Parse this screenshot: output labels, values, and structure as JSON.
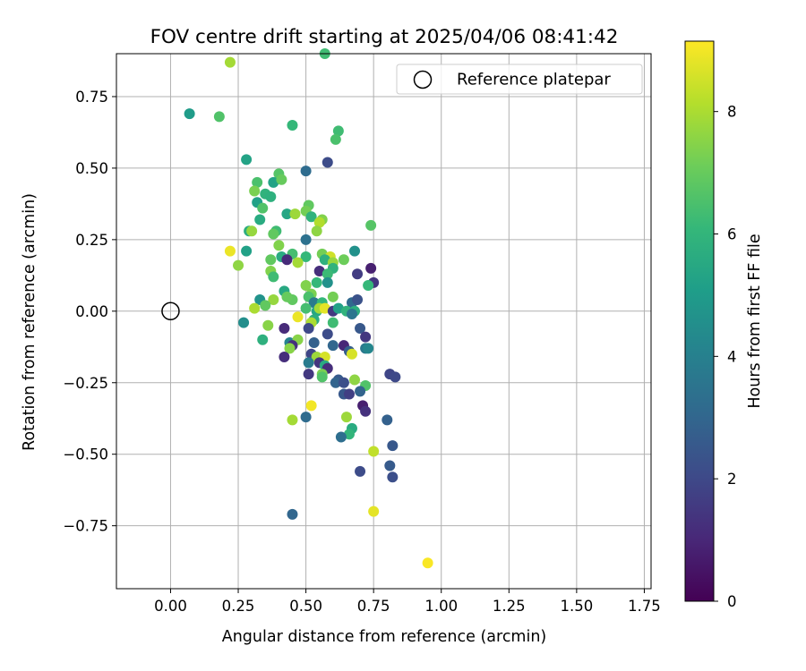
{
  "chart_data": {
    "type": "scatter",
    "title": "FOV centre drift starting at 2025/04/06 08:41:42",
    "xlabel": "Angular distance from reference (arcmin)",
    "ylabel": "Rotation from reference (arcmin)",
    "xlim": [
      -0.2,
      1.775
    ],
    "ylim": [
      -0.97,
      0.9
    ],
    "x_ticks": [
      0.0,
      0.25,
      0.5,
      0.75,
      1.0,
      1.25,
      1.5,
      1.75
    ],
    "x_tick_labels": [
      "0.00",
      "0.25",
      "0.50",
      "0.75",
      "1.00",
      "1.25",
      "1.50",
      "1.75"
    ],
    "y_ticks": [
      -0.75,
      -0.5,
      -0.25,
      0.0,
      0.25,
      0.5,
      0.75
    ],
    "y_tick_labels": [
      "−0.75",
      "−0.50",
      "−0.25",
      "0.00",
      "0.25",
      "0.50",
      "0.75"
    ],
    "grid": true,
    "legend": {
      "placement": "top-right",
      "entries": [
        "Reference platepar"
      ]
    },
    "reference_point": {
      "x": 0.0,
      "y": 0.0
    },
    "colorbar": {
      "label": "Hours from first FF file",
      "range": [
        0,
        9.15
      ],
      "ticks": [
        0,
        2,
        4,
        6,
        8
      ],
      "tick_labels": [
        "0",
        "2",
        "4",
        "6",
        "8"
      ],
      "colormap": "viridis"
    },
    "points": [
      {
        "x": 0.22,
        "y": 0.87,
        "h": 7.9
      },
      {
        "x": 0.57,
        "y": 0.9,
        "h": 6.3
      },
      {
        "x": 0.07,
        "y": 0.69,
        "h": 5.0
      },
      {
        "x": 0.18,
        "y": 0.68,
        "h": 6.6
      },
      {
        "x": 0.45,
        "y": 0.65,
        "h": 6.1
      },
      {
        "x": 0.62,
        "y": 0.63,
        "h": 6.3
      },
      {
        "x": 0.61,
        "y": 0.6,
        "h": 6.5
      },
      {
        "x": 0.28,
        "y": 0.53,
        "h": 5.3
      },
      {
        "x": 0.58,
        "y": 0.52,
        "h": 2.1
      },
      {
        "x": 0.5,
        "y": 0.49,
        "h": 3.2
      },
      {
        "x": 0.4,
        "y": 0.48,
        "h": 6.7
      },
      {
        "x": 0.32,
        "y": 0.45,
        "h": 6.5
      },
      {
        "x": 0.38,
        "y": 0.45,
        "h": 5.3
      },
      {
        "x": 0.41,
        "y": 0.46,
        "h": 7.0
      },
      {
        "x": 0.31,
        "y": 0.42,
        "h": 7.3
      },
      {
        "x": 0.35,
        "y": 0.41,
        "h": 5.9
      },
      {
        "x": 0.32,
        "y": 0.38,
        "h": 5.2
      },
      {
        "x": 0.37,
        "y": 0.4,
        "h": 5.8
      },
      {
        "x": 0.34,
        "y": 0.36,
        "h": 6.6
      },
      {
        "x": 0.51,
        "y": 0.37,
        "h": 6.9
      },
      {
        "x": 0.5,
        "y": 0.35,
        "h": 7.2
      },
      {
        "x": 0.43,
        "y": 0.34,
        "h": 5.4
      },
      {
        "x": 0.46,
        "y": 0.34,
        "h": 7.8
      },
      {
        "x": 0.33,
        "y": 0.32,
        "h": 5.6
      },
      {
        "x": 0.52,
        "y": 0.33,
        "h": 5.9
      },
      {
        "x": 0.56,
        "y": 0.32,
        "h": 7.4
      },
      {
        "x": 0.55,
        "y": 0.31,
        "h": 8.1
      },
      {
        "x": 0.74,
        "y": 0.3,
        "h": 6.7
      },
      {
        "x": 0.29,
        "y": 0.28,
        "h": 5.7
      },
      {
        "x": 0.3,
        "y": 0.28,
        "h": 7.7
      },
      {
        "x": 0.39,
        "y": 0.28,
        "h": 6.3
      },
      {
        "x": 0.38,
        "y": 0.27,
        "h": 6.9
      },
      {
        "x": 0.54,
        "y": 0.28,
        "h": 7.6
      },
      {
        "x": 0.5,
        "y": 0.25,
        "h": 3.4
      },
      {
        "x": 0.4,
        "y": 0.23,
        "h": 7.4
      },
      {
        "x": 0.22,
        "y": 0.21,
        "h": 8.9
      },
      {
        "x": 0.28,
        "y": 0.21,
        "h": 5.2
      },
      {
        "x": 0.45,
        "y": 0.2,
        "h": 6.4
      },
      {
        "x": 0.41,
        "y": 0.19,
        "h": 5.6
      },
      {
        "x": 0.37,
        "y": 0.18,
        "h": 6.9
      },
      {
        "x": 0.43,
        "y": 0.18,
        "h": 1.1
      },
      {
        "x": 0.5,
        "y": 0.19,
        "h": 6.1
      },
      {
        "x": 0.56,
        "y": 0.2,
        "h": 7.2
      },
      {
        "x": 0.59,
        "y": 0.19,
        "h": 8.5
      },
      {
        "x": 0.57,
        "y": 0.18,
        "h": 5.8
      },
      {
        "x": 0.6,
        "y": 0.17,
        "h": 7.7
      },
      {
        "x": 0.64,
        "y": 0.18,
        "h": 7.1
      },
      {
        "x": 0.68,
        "y": 0.21,
        "h": 4.6
      },
      {
        "x": 0.47,
        "y": 0.17,
        "h": 7.9
      },
      {
        "x": 0.25,
        "y": 0.16,
        "h": 7.6
      },
      {
        "x": 0.6,
        "y": 0.15,
        "h": 5.9
      },
      {
        "x": 0.74,
        "y": 0.15,
        "h": 0.8
      },
      {
        "x": 0.37,
        "y": 0.14,
        "h": 7.4
      },
      {
        "x": 0.55,
        "y": 0.14,
        "h": 1.2
      },
      {
        "x": 0.58,
        "y": 0.13,
        "h": 6.2
      },
      {
        "x": 0.38,
        "y": 0.12,
        "h": 6.3
      },
      {
        "x": 0.69,
        "y": 0.13,
        "h": 1.6
      },
      {
        "x": 0.58,
        "y": 0.1,
        "h": 4.6
      },
      {
        "x": 0.54,
        "y": 0.1,
        "h": 6.1
      },
      {
        "x": 0.5,
        "y": 0.09,
        "h": 7.4
      },
      {
        "x": 0.75,
        "y": 0.1,
        "h": 1.4
      },
      {
        "x": 0.73,
        "y": 0.09,
        "h": 6.1
      },
      {
        "x": 0.42,
        "y": 0.07,
        "h": 5.5
      },
      {
        "x": 0.52,
        "y": 0.06,
        "h": 7.3
      },
      {
        "x": 0.33,
        "y": 0.04,
        "h": 4.7
      },
      {
        "x": 0.38,
        "y": 0.04,
        "h": 7.7
      },
      {
        "x": 0.45,
        "y": 0.04,
        "h": 6.9
      },
      {
        "x": 0.43,
        "y": 0.05,
        "h": 7.0
      },
      {
        "x": 0.51,
        "y": 0.05,
        "h": 6.5
      },
      {
        "x": 0.53,
        "y": 0.03,
        "h": 3.8
      },
      {
        "x": 0.56,
        "y": 0.03,
        "h": 6.1
      },
      {
        "x": 0.6,
        "y": 0.05,
        "h": 7.2
      },
      {
        "x": 0.67,
        "y": 0.03,
        "h": 3.1
      },
      {
        "x": 0.69,
        "y": 0.04,
        "h": 2.3
      },
      {
        "x": 0.31,
        "y": 0.01,
        "h": 8.0
      },
      {
        "x": 0.35,
        "y": 0.02,
        "h": 6.9
      },
      {
        "x": 0.5,
        "y": 0.01,
        "h": 6.4
      },
      {
        "x": 0.54,
        "y": 0.0,
        "h": 5.4
      },
      {
        "x": 0.55,
        "y": 0.01,
        "h": 7.9
      },
      {
        "x": 0.57,
        "y": 0.01,
        "h": 8.8
      },
      {
        "x": 0.6,
        "y": 0.0,
        "h": 1.5
      },
      {
        "x": 0.62,
        "y": 0.01,
        "h": 5.2
      },
      {
        "x": 0.65,
        "y": 0.0,
        "h": 5.9
      },
      {
        "x": 0.68,
        "y": 0.0,
        "h": 5.7
      },
      {
        "x": 0.67,
        "y": -0.01,
        "h": 3.6
      },
      {
        "x": 0.47,
        "y": -0.02,
        "h": 8.9
      },
      {
        "x": 0.53,
        "y": -0.03,
        "h": 5.7
      },
      {
        "x": 0.52,
        "y": -0.04,
        "h": 8.0
      },
      {
        "x": 0.6,
        "y": -0.04,
        "h": 6.3
      },
      {
        "x": 0.27,
        "y": -0.04,
        "h": 4.5
      },
      {
        "x": 0.36,
        "y": -0.05,
        "h": 7.5
      },
      {
        "x": 0.42,
        "y": -0.06,
        "h": 1.1
      },
      {
        "x": 0.51,
        "y": -0.06,
        "h": 2.0
      },
      {
        "x": 0.58,
        "y": -0.08,
        "h": 2.1
      },
      {
        "x": 0.7,
        "y": -0.06,
        "h": 2.5
      },
      {
        "x": 0.72,
        "y": -0.09,
        "h": 1.5
      },
      {
        "x": 0.34,
        "y": -0.1,
        "h": 5.8
      },
      {
        "x": 0.44,
        "y": -0.11,
        "h": 4.1
      },
      {
        "x": 0.47,
        "y": -0.1,
        "h": 7.5
      },
      {
        "x": 0.45,
        "y": -0.12,
        "h": 1.3
      },
      {
        "x": 0.44,
        "y": -0.13,
        "h": 7.5
      },
      {
        "x": 0.53,
        "y": -0.11,
        "h": 2.8
      },
      {
        "x": 0.6,
        "y": -0.12,
        "h": 3.0
      },
      {
        "x": 0.64,
        "y": -0.12,
        "h": 1.0
      },
      {
        "x": 0.66,
        "y": -0.14,
        "h": 2.7
      },
      {
        "x": 0.67,
        "y": -0.15,
        "h": 8.6
      },
      {
        "x": 0.72,
        "y": -0.13,
        "h": 3.7
      },
      {
        "x": 0.73,
        "y": -0.13,
        "h": 4.2
      },
      {
        "x": 0.42,
        "y": -0.16,
        "h": 1.2
      },
      {
        "x": 0.52,
        "y": -0.15,
        "h": 1.9
      },
      {
        "x": 0.54,
        "y": -0.16,
        "h": 7.8
      },
      {
        "x": 0.57,
        "y": -0.16,
        "h": 8.6
      },
      {
        "x": 0.51,
        "y": -0.18,
        "h": 3.8
      },
      {
        "x": 0.55,
        "y": -0.18,
        "h": 1.4
      },
      {
        "x": 0.57,
        "y": -0.19,
        "h": 5.6
      },
      {
        "x": 0.58,
        "y": -0.2,
        "h": 1.2
      },
      {
        "x": 0.56,
        "y": -0.22,
        "h": 7.3
      },
      {
        "x": 0.51,
        "y": -0.22,
        "h": 1.5
      },
      {
        "x": 0.56,
        "y": -0.23,
        "h": 6.6
      },
      {
        "x": 0.62,
        "y": -0.24,
        "h": 2.6
      },
      {
        "x": 0.61,
        "y": -0.25,
        "h": 2.9
      },
      {
        "x": 0.64,
        "y": -0.25,
        "h": 2.2
      },
      {
        "x": 0.68,
        "y": -0.24,
        "h": 7.6
      },
      {
        "x": 0.72,
        "y": -0.26,
        "h": 6.6
      },
      {
        "x": 0.81,
        "y": -0.22,
        "h": 1.9
      },
      {
        "x": 0.83,
        "y": -0.23,
        "h": 2.0
      },
      {
        "x": 0.64,
        "y": -0.29,
        "h": 2.5
      },
      {
        "x": 0.66,
        "y": -0.29,
        "h": 1.7
      },
      {
        "x": 0.7,
        "y": -0.28,
        "h": 2.9
      },
      {
        "x": 0.52,
        "y": -0.33,
        "h": 9.0
      },
      {
        "x": 0.71,
        "y": -0.33,
        "h": 0.8
      },
      {
        "x": 0.72,
        "y": -0.35,
        "h": 1.3
      },
      {
        "x": 0.65,
        "y": -0.37,
        "h": 7.8
      },
      {
        "x": 0.5,
        "y": -0.37,
        "h": 3.2
      },
      {
        "x": 0.8,
        "y": -0.38,
        "h": 2.8
      },
      {
        "x": 0.45,
        "y": -0.38,
        "h": 7.9
      },
      {
        "x": 0.67,
        "y": -0.41,
        "h": 5.6
      },
      {
        "x": 0.66,
        "y": -0.43,
        "h": 6.0
      },
      {
        "x": 0.63,
        "y": -0.44,
        "h": 3.3
      },
      {
        "x": 0.82,
        "y": -0.47,
        "h": 2.5
      },
      {
        "x": 0.75,
        "y": -0.49,
        "h": 8.3
      },
      {
        "x": 0.81,
        "y": -0.54,
        "h": 2.6
      },
      {
        "x": 0.7,
        "y": -0.56,
        "h": 2.1
      },
      {
        "x": 0.82,
        "y": -0.58,
        "h": 2.2
      },
      {
        "x": 0.75,
        "y": -0.7,
        "h": 8.8
      },
      {
        "x": 0.45,
        "y": -0.71,
        "h": 3.0
      },
      {
        "x": 0.95,
        "y": -0.88,
        "h": 9.1
      }
    ]
  }
}
